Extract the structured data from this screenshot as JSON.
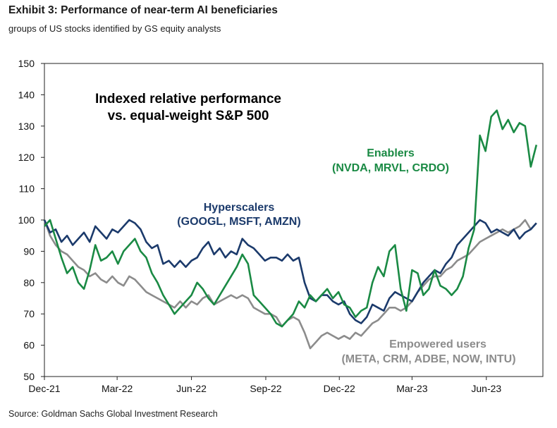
{
  "header": {
    "title": "Exhibit 3: Performance of near-term AI beneficiaries",
    "subtitle": "groups of US stocks identified by GS equity analysts"
  },
  "footer": {
    "source": "Source: Goldman Sachs Global Investment Research"
  },
  "chart_data": {
    "type": "line",
    "title": "Exhibit 3: Performance of near-term AI beneficiaries",
    "subtitle": "groups of US stocks identified by GS equity analysts",
    "inner_title_line1": "Indexed relative performance",
    "inner_title_line2": "vs. equal-weight S&P 500",
    "xlabel": "",
    "ylabel": "",
    "ylim": [
      50,
      150
    ],
    "yticks": [
      50,
      60,
      70,
      80,
      90,
      100,
      110,
      120,
      130,
      140,
      150
    ],
    "xlim": [
      "2021-12-01",
      "2023-08-10"
    ],
    "xticks": [
      {
        "label": "Dec-21",
        "date": "2021-12-01"
      },
      {
        "label": "Mar-22",
        "date": "2022-03-01"
      },
      {
        "label": "Jun-22",
        "date": "2022-06-01"
      },
      {
        "label": "Sep-22",
        "date": "2022-09-01"
      },
      {
        "label": "Dec-22",
        "date": "2022-12-01"
      },
      {
        "label": "Mar-23",
        "date": "2023-03-01"
      },
      {
        "label": "Jun-23",
        "date": "2023-06-01"
      }
    ],
    "grid": false,
    "legend": "none",
    "series": [
      {
        "name": "Hyperscalers",
        "annotation_line1": "Hyperscalers",
        "annotation_line2": "(GOOGL,  MSFT, AMZN)",
        "color": "#1b3a6b",
        "points": [
          [
            "2021-12-01",
            100
          ],
          [
            "2021-12-08",
            96
          ],
          [
            "2021-12-15",
            97
          ],
          [
            "2021-12-22",
            93
          ],
          [
            "2021-12-29",
            95
          ],
          [
            "2022-01-05",
            92
          ],
          [
            "2022-01-12",
            94
          ],
          [
            "2022-01-19",
            96
          ],
          [
            "2022-01-26",
            93
          ],
          [
            "2022-02-02",
            98
          ],
          [
            "2022-02-09",
            96
          ],
          [
            "2022-02-16",
            94
          ],
          [
            "2022-02-23",
            97
          ],
          [
            "2022-03-02",
            96
          ],
          [
            "2022-03-09",
            98
          ],
          [
            "2022-03-16",
            100
          ],
          [
            "2022-03-23",
            99
          ],
          [
            "2022-03-30",
            97
          ],
          [
            "2022-04-06",
            93
          ],
          [
            "2022-04-13",
            91
          ],
          [
            "2022-04-20",
            92
          ],
          [
            "2022-04-27",
            86
          ],
          [
            "2022-05-04",
            87
          ],
          [
            "2022-05-11",
            85
          ],
          [
            "2022-05-18",
            87
          ],
          [
            "2022-05-25",
            85
          ],
          [
            "2022-06-01",
            87
          ],
          [
            "2022-06-08",
            88
          ],
          [
            "2022-06-15",
            91
          ],
          [
            "2022-06-22",
            93
          ],
          [
            "2022-06-29",
            89
          ],
          [
            "2022-07-06",
            91
          ],
          [
            "2022-07-13",
            88
          ],
          [
            "2022-07-20",
            90
          ],
          [
            "2022-07-27",
            89
          ],
          [
            "2022-08-03",
            94
          ],
          [
            "2022-08-10",
            92
          ],
          [
            "2022-08-17",
            91
          ],
          [
            "2022-08-24",
            89
          ],
          [
            "2022-08-31",
            87
          ],
          [
            "2022-09-07",
            88
          ],
          [
            "2022-09-14",
            88
          ],
          [
            "2022-09-21",
            87
          ],
          [
            "2022-09-28",
            89
          ],
          [
            "2022-10-05",
            87
          ],
          [
            "2022-10-12",
            88
          ],
          [
            "2022-10-19",
            80
          ],
          [
            "2022-10-26",
            75
          ],
          [
            "2022-11-02",
            74
          ],
          [
            "2022-11-09",
            76
          ],
          [
            "2022-11-16",
            76
          ],
          [
            "2022-11-23",
            74
          ],
          [
            "2022-11-30",
            73
          ],
          [
            "2022-12-07",
            74
          ],
          [
            "2022-12-14",
            70
          ],
          [
            "2022-12-21",
            68
          ],
          [
            "2022-12-28",
            67
          ],
          [
            "2023-01-04",
            69
          ],
          [
            "2023-01-11",
            73
          ],
          [
            "2023-01-18",
            72
          ],
          [
            "2023-01-25",
            71
          ],
          [
            "2023-02-01",
            75
          ],
          [
            "2023-02-08",
            77
          ],
          [
            "2023-02-15",
            76
          ],
          [
            "2023-02-22",
            75
          ],
          [
            "2023-03-01",
            74
          ],
          [
            "2023-03-08",
            77
          ],
          [
            "2023-03-15",
            80
          ],
          [
            "2023-03-22",
            82
          ],
          [
            "2023-03-29",
            84
          ],
          [
            "2023-04-05",
            83
          ],
          [
            "2023-04-12",
            86
          ],
          [
            "2023-04-19",
            88
          ],
          [
            "2023-04-26",
            92
          ],
          [
            "2023-05-03",
            94
          ],
          [
            "2023-05-10",
            96
          ],
          [
            "2023-05-17",
            98
          ],
          [
            "2023-05-24",
            100
          ],
          [
            "2023-05-31",
            99
          ],
          [
            "2023-06-07",
            96
          ],
          [
            "2023-06-14",
            97
          ],
          [
            "2023-06-21",
            96
          ],
          [
            "2023-06-28",
            95
          ],
          [
            "2023-07-05",
            97
          ],
          [
            "2023-07-12",
            94
          ],
          [
            "2023-07-19",
            96
          ],
          [
            "2023-07-26",
            97
          ],
          [
            "2023-08-02",
            99
          ]
        ]
      },
      {
        "name": "Enablers",
        "annotation_line1": "Enablers",
        "annotation_line2": "(NVDA, MRVL, CRDO)",
        "color": "#1a8a44",
        "points": [
          [
            "2021-12-01",
            98
          ],
          [
            "2021-12-08",
            100
          ],
          [
            "2021-12-15",
            94
          ],
          [
            "2021-12-22",
            88
          ],
          [
            "2021-12-29",
            83
          ],
          [
            "2022-01-05",
            85
          ],
          [
            "2022-01-12",
            80
          ],
          [
            "2022-01-19",
            78
          ],
          [
            "2022-01-26",
            84
          ],
          [
            "2022-02-02",
            92
          ],
          [
            "2022-02-09",
            87
          ],
          [
            "2022-02-16",
            88
          ],
          [
            "2022-02-23",
            90
          ],
          [
            "2022-03-02",
            86
          ],
          [
            "2022-03-09",
            90
          ],
          [
            "2022-03-16",
            92
          ],
          [
            "2022-03-23",
            94
          ],
          [
            "2022-03-30",
            90
          ],
          [
            "2022-04-06",
            88
          ],
          [
            "2022-04-13",
            83
          ],
          [
            "2022-04-20",
            80
          ],
          [
            "2022-04-27",
            76
          ],
          [
            "2022-05-04",
            73
          ],
          [
            "2022-05-11",
            70
          ],
          [
            "2022-05-18",
            72
          ],
          [
            "2022-05-25",
            74
          ],
          [
            "2022-06-01",
            76
          ],
          [
            "2022-06-08",
            80
          ],
          [
            "2022-06-15",
            78
          ],
          [
            "2022-06-22",
            75
          ],
          [
            "2022-06-29",
            73
          ],
          [
            "2022-07-06",
            76
          ],
          [
            "2022-07-13",
            79
          ],
          [
            "2022-07-20",
            82
          ],
          [
            "2022-07-27",
            85
          ],
          [
            "2022-08-03",
            89
          ],
          [
            "2022-08-10",
            86
          ],
          [
            "2022-08-17",
            76
          ],
          [
            "2022-08-24",
            74
          ],
          [
            "2022-08-31",
            72
          ],
          [
            "2022-09-07",
            70
          ],
          [
            "2022-09-14",
            67
          ],
          [
            "2022-09-21",
            66
          ],
          [
            "2022-09-28",
            68
          ],
          [
            "2022-10-05",
            70
          ],
          [
            "2022-10-12",
            74
          ],
          [
            "2022-10-19",
            72
          ],
          [
            "2022-10-26",
            76
          ],
          [
            "2022-11-02",
            74
          ],
          [
            "2022-11-09",
            76
          ],
          [
            "2022-11-16",
            78
          ],
          [
            "2022-11-23",
            75
          ],
          [
            "2022-11-30",
            77
          ],
          [
            "2022-12-07",
            73
          ],
          [
            "2022-12-14",
            72
          ],
          [
            "2022-12-21",
            69
          ],
          [
            "2022-12-28",
            71
          ],
          [
            "2023-01-04",
            72
          ],
          [
            "2023-01-11",
            80
          ],
          [
            "2023-01-18",
            85
          ],
          [
            "2023-01-25",
            82
          ],
          [
            "2023-02-01",
            90
          ],
          [
            "2023-02-08",
            92
          ],
          [
            "2023-02-15",
            78
          ],
          [
            "2023-02-22",
            71
          ],
          [
            "2023-03-01",
            84
          ],
          [
            "2023-03-08",
            83
          ],
          [
            "2023-03-15",
            76
          ],
          [
            "2023-03-22",
            78
          ],
          [
            "2023-03-29",
            84
          ],
          [
            "2023-04-05",
            79
          ],
          [
            "2023-04-12",
            78
          ],
          [
            "2023-04-19",
            76
          ],
          [
            "2023-04-26",
            78
          ],
          [
            "2023-05-03",
            82
          ],
          [
            "2023-05-10",
            91
          ],
          [
            "2023-05-17",
            97
          ],
          [
            "2023-05-24",
            127
          ],
          [
            "2023-05-31",
            122
          ],
          [
            "2023-06-07",
            133
          ],
          [
            "2023-06-14",
            135
          ],
          [
            "2023-06-21",
            129
          ],
          [
            "2023-06-28",
            132
          ],
          [
            "2023-07-05",
            128
          ],
          [
            "2023-07-12",
            131
          ],
          [
            "2023-07-19",
            130
          ],
          [
            "2023-07-26",
            117
          ],
          [
            "2023-08-02",
            124
          ]
        ]
      },
      {
        "name": "Empowered users",
        "annotation_line1": "Empowered users",
        "annotation_line2": "(META, CRM, ADBE, NOW, INTU)",
        "color": "#8c8c8c",
        "points": [
          [
            "2021-12-01",
            100
          ],
          [
            "2021-12-08",
            95
          ],
          [
            "2021-12-15",
            92
          ],
          [
            "2021-12-22",
            90
          ],
          [
            "2021-12-29",
            89
          ],
          [
            "2022-01-05",
            87
          ],
          [
            "2022-01-12",
            85
          ],
          [
            "2022-01-19",
            84
          ],
          [
            "2022-01-26",
            82
          ],
          [
            "2022-02-02",
            83
          ],
          [
            "2022-02-09",
            81
          ],
          [
            "2022-02-16",
            80
          ],
          [
            "2022-02-23",
            82
          ],
          [
            "2022-03-02",
            80
          ],
          [
            "2022-03-09",
            79
          ],
          [
            "2022-03-16",
            82
          ],
          [
            "2022-03-23",
            81
          ],
          [
            "2022-03-30",
            79
          ],
          [
            "2022-04-06",
            77
          ],
          [
            "2022-04-13",
            76
          ],
          [
            "2022-04-20",
            75
          ],
          [
            "2022-04-27",
            74
          ],
          [
            "2022-05-04",
            73
          ],
          [
            "2022-05-11",
            72
          ],
          [
            "2022-05-18",
            74
          ],
          [
            "2022-05-25",
            72
          ],
          [
            "2022-06-01",
            74
          ],
          [
            "2022-06-08",
            73
          ],
          [
            "2022-06-15",
            75
          ],
          [
            "2022-06-22",
            76
          ],
          [
            "2022-06-29",
            73
          ],
          [
            "2022-07-06",
            74
          ],
          [
            "2022-07-13",
            75
          ],
          [
            "2022-07-20",
            76
          ],
          [
            "2022-07-27",
            75
          ],
          [
            "2022-08-03",
            76
          ],
          [
            "2022-08-10",
            75
          ],
          [
            "2022-08-17",
            72
          ],
          [
            "2022-08-24",
            71
          ],
          [
            "2022-08-31",
            70
          ],
          [
            "2022-09-07",
            70
          ],
          [
            "2022-09-14",
            69
          ],
          [
            "2022-09-21",
            66
          ],
          [
            "2022-09-28",
            68
          ],
          [
            "2022-10-05",
            69
          ],
          [
            "2022-10-12",
            68
          ],
          [
            "2022-10-19",
            64
          ],
          [
            "2022-10-26",
            59
          ],
          [
            "2022-11-02",
            61
          ],
          [
            "2022-11-09",
            63
          ],
          [
            "2022-11-16",
            64
          ],
          [
            "2022-11-23",
            63
          ],
          [
            "2022-11-30",
            62
          ],
          [
            "2022-12-07",
            63
          ],
          [
            "2022-12-14",
            62
          ],
          [
            "2022-12-21",
            64
          ],
          [
            "2022-12-28",
            63
          ],
          [
            "2023-01-04",
            65
          ],
          [
            "2023-01-11",
            67
          ],
          [
            "2023-01-18",
            68
          ],
          [
            "2023-01-25",
            70
          ],
          [
            "2023-02-01",
            72
          ],
          [
            "2023-02-08",
            72
          ],
          [
            "2023-02-15",
            71
          ],
          [
            "2023-02-22",
            72
          ],
          [
            "2023-03-01",
            74
          ],
          [
            "2023-03-08",
            77
          ],
          [
            "2023-03-15",
            79
          ],
          [
            "2023-03-22",
            81
          ],
          [
            "2023-03-29",
            82
          ],
          [
            "2023-04-05",
            82
          ],
          [
            "2023-04-12",
            84
          ],
          [
            "2023-04-19",
            85
          ],
          [
            "2023-04-26",
            87
          ],
          [
            "2023-05-03",
            88
          ],
          [
            "2023-05-10",
            89
          ],
          [
            "2023-05-17",
            91
          ],
          [
            "2023-05-24",
            93
          ],
          [
            "2023-05-31",
            94
          ],
          [
            "2023-06-07",
            95
          ],
          [
            "2023-06-14",
            96
          ],
          [
            "2023-06-21",
            97
          ],
          [
            "2023-06-28",
            96
          ],
          [
            "2023-07-05",
            97
          ],
          [
            "2023-07-12",
            98
          ],
          [
            "2023-07-19",
            100
          ],
          [
            "2023-07-26",
            97
          ],
          [
            "2023-08-02",
            99
          ]
        ]
      }
    ]
  }
}
